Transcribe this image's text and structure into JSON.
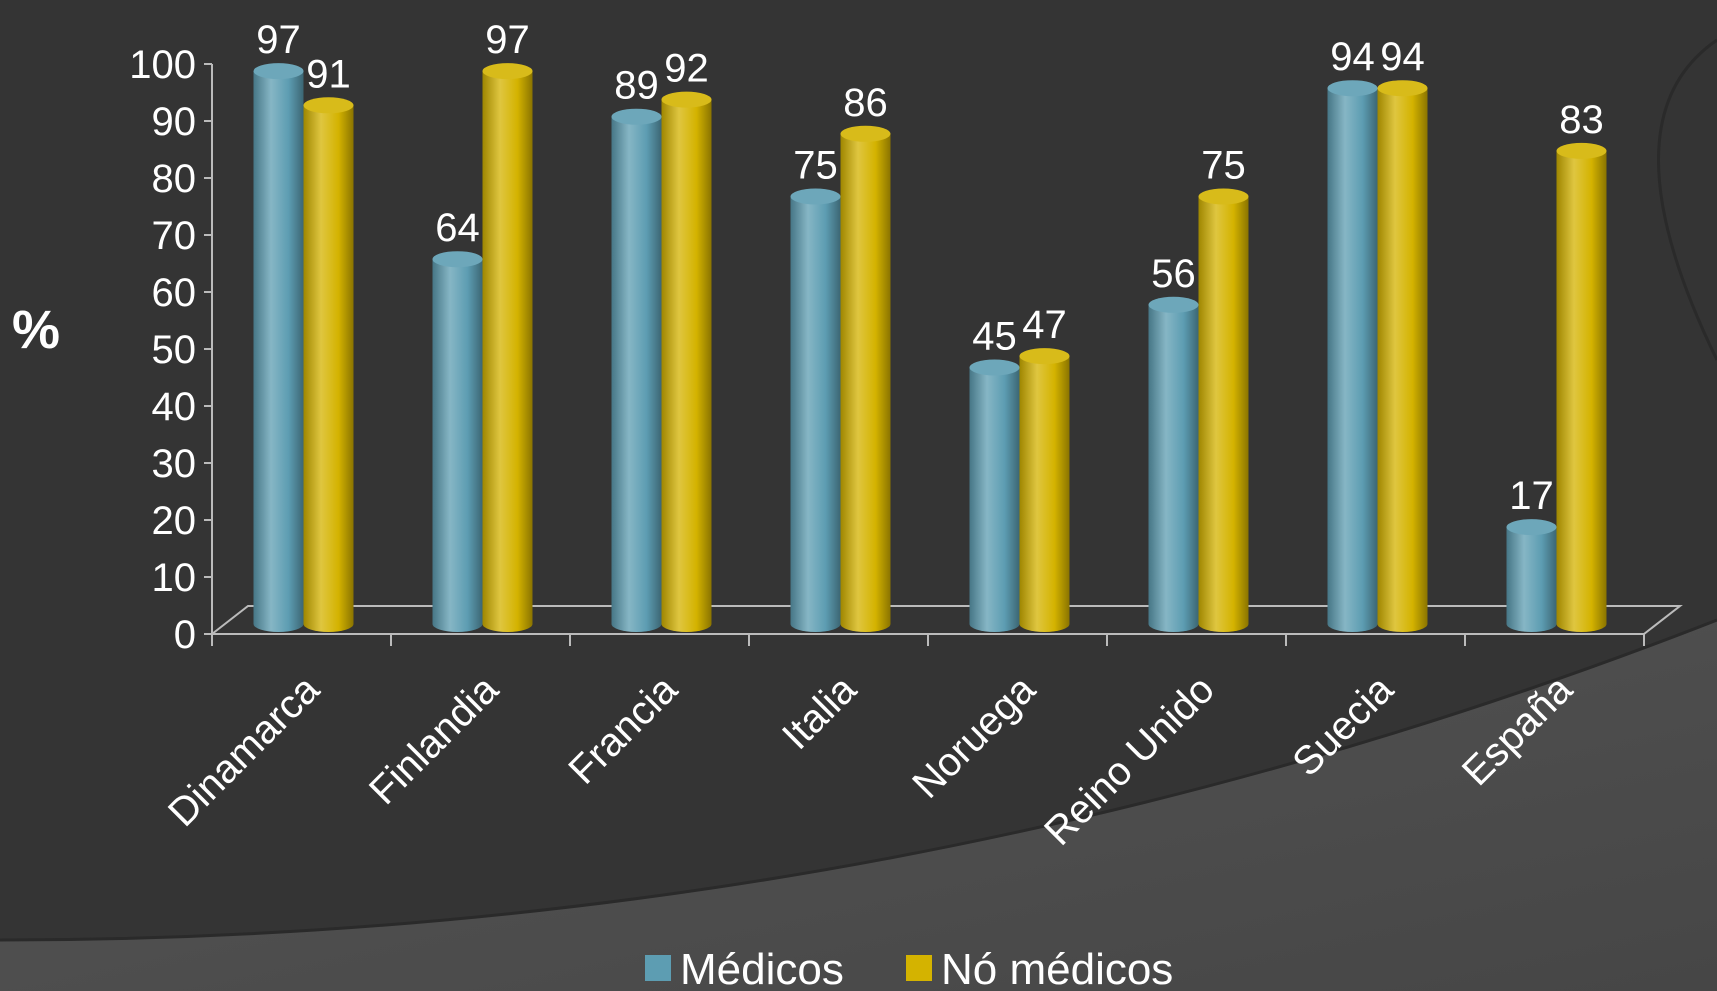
{
  "chart_data": {
    "type": "bar",
    "ylabel": "%",
    "xlabel": "",
    "ylim": [
      0,
      100
    ],
    "yticks": [
      0,
      10,
      20,
      30,
      40,
      50,
      60,
      70,
      80,
      90,
      100
    ],
    "categories": [
      "Dinamarca",
      "Finlandia",
      "Francia",
      "Italia",
      "Noruega",
      "Reino Unido",
      "Suecia",
      "España"
    ],
    "series": [
      {
        "name": "Médicos",
        "color": "#5d9db2",
        "values": [
          97,
          64,
          89,
          75,
          45,
          56,
          94,
          17
        ]
      },
      {
        "name": "Nó médicos",
        "color": "#d4b300",
        "values": [
          91,
          97,
          92,
          86,
          47,
          75,
          94,
          83
        ]
      }
    ],
    "legend": "bottom",
    "grid": false
  }
}
